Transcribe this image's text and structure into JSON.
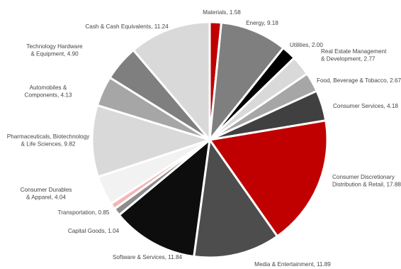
{
  "chart_data": {
    "type": "pie",
    "start": "top",
    "direction": "clockwise",
    "legend": "none",
    "slices": [
      {
        "label": "Materials",
        "value": 1.58,
        "color": "#c00000"
      },
      {
        "label": "Energy",
        "value": 9.18,
        "color": "#7f7f7f"
      },
      {
        "label": "Utilities",
        "value": 2.0,
        "color": "#000000"
      },
      {
        "label": "Real Estate Management & Development",
        "value": 2.77,
        "color": "#d9d9d9"
      },
      {
        "label": "Food, Beverage & Tobacco",
        "value": 2.67,
        "color": "#a6a6a6"
      },
      {
        "label": "Consumer Services",
        "value": 4.18,
        "color": "#404040"
      },
      {
        "label": "Consumer Discretionary Distribution & Retail",
        "value": 17.88,
        "color": "#c00000"
      },
      {
        "label": "Media & Entertainment",
        "value": 11.89,
        "color": "#4d4d4d"
      },
      {
        "label": "Software & Services",
        "value": 11.84,
        "color": "#0d0d0d"
      },
      {
        "label": "Capital Goods",
        "value": 1.04,
        "color": "#8c8c8c"
      },
      {
        "label": "Transportation",
        "value": 0.85,
        "color": "#f4b6b6"
      },
      {
        "label": "Consumer Durables & Apparel",
        "value": 4.04,
        "color": "#f2f2f2"
      },
      {
        "label": "Pharmaceuticals, Biotechnology & Life Sciences",
        "value": 9.82,
        "color": "#d9d9d9"
      },
      {
        "label": "Automobiles & Components",
        "value": 4.13,
        "color": "#a6a6a6"
      },
      {
        "label": "Technology Hardware & Equipment",
        "value": 4.9,
        "color": "#7f7f7f"
      },
      {
        "label": "Cash & Cash Equivalents",
        "value": 11.24,
        "color": "#d9d9d9"
      }
    ]
  }
}
